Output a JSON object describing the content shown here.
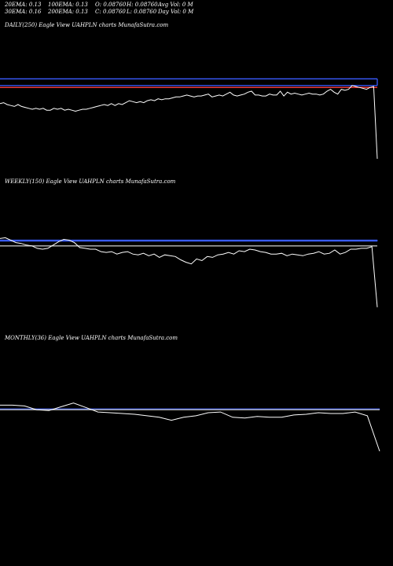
{
  "stats": {
    "ema20": "20EMA: 0.13",
    "ema30": "30EMA: 0.16",
    "ema100": "100EMA: 0.13",
    "ema200": "200EMA: 0.13",
    "open": "O: 0.08760",
    "close": "C: 0.08760",
    "high": "H: 0.08760",
    "low": "L: 0.08760",
    "avg_vol": "Avg Vol: 0  M",
    "day_vol": "Day Vol: 0  M"
  },
  "panels": {
    "daily": "DAILY(250) Eagle  View  UAHPLN  charts MunafaSutra.com",
    "weekly": "WEEKLY(150) Eagle  View  UAHPLN  charts MunafaSutra.com",
    "monthly": "MONTHLY(36) Eagle  View  UAHPLN  charts MunafaSutra.com"
  },
  "colors": {
    "background": "#000000",
    "price": "#ffffff",
    "ema_blue": "#3a5cff",
    "ema_red": "#ff3b3b",
    "ema_gray": "#bbbbbb"
  },
  "chart_data": [
    {
      "type": "line",
      "title": "DAILY(250) Eagle  View  UAHPLN  charts MunafaSutra.com",
      "ylim": [
        0.07,
        0.17
      ],
      "series": [
        {
          "role": "price",
          "values": [
            0.133,
            0.134,
            0.132,
            0.131,
            0.13,
            0.132,
            0.13,
            0.129,
            0.128,
            0.127,
            0.128,
            0.127,
            0.128,
            0.126,
            0.126,
            0.128,
            0.127,
            0.128,
            0.126,
            0.127,
            0.126,
            0.125,
            0.126,
            0.127,
            0.127,
            0.128,
            0.129,
            0.13,
            0.131,
            0.132,
            0.131,
            0.133,
            0.131,
            0.133,
            0.132,
            0.134,
            0.136,
            0.135,
            0.134,
            0.135,
            0.134,
            0.136,
            0.137,
            0.136,
            0.138,
            0.137,
            0.138,
            0.138,
            0.139,
            0.14,
            0.14,
            0.141,
            0.142,
            0.141,
            0.14,
            0.141,
            0.141,
            0.142,
            0.143,
            0.14,
            0.141,
            0.142,
            0.141,
            0.143,
            0.145,
            0.142,
            0.141,
            0.142,
            0.143,
            0.145,
            0.146,
            0.142,
            0.142,
            0.141,
            0.141,
            0.143,
            0.142,
            0.142,
            0.146,
            0.141,
            0.145,
            0.143,
            0.144,
            0.143,
            0.142,
            0.143,
            0.144,
            0.143,
            0.143,
            0.142,
            0.143,
            0.146,
            0.148,
            0.145,
            0.143,
            0.148,
            0.147,
            0.148,
            0.152,
            0.151,
            0.15,
            0.149,
            0.148,
            0.15,
            0.151,
            0.075
          ]
        },
        {
          "role": "ema",
          "color": "#3a5cff",
          "values": [
            0.152,
            0.152
          ]
        },
        {
          "role": "ema",
          "color": "#3a5cff",
          "values": [
            0.159,
            0.159
          ]
        },
        {
          "role": "ema",
          "color": "#ff3b3b",
          "values": [
            0.15,
            0.15
          ]
        }
      ]
    },
    {
      "type": "line",
      "title": "WEEKLY(150) Eagle  View  UAHPLN  charts MunafaSutra.com",
      "ylim": [
        0.07,
        0.17
      ],
      "series": [
        {
          "role": "price",
          "values": [
            0.159,
            0.16,
            0.157,
            0.154,
            0.153,
            0.151,
            0.15,
            0.147,
            0.146,
            0.147,
            0.151,
            0.155,
            0.158,
            0.157,
            0.154,
            0.148,
            0.147,
            0.146,
            0.146,
            0.143,
            0.142,
            0.143,
            0.14,
            0.142,
            0.143,
            0.14,
            0.139,
            0.141,
            0.138,
            0.14,
            0.136,
            0.139,
            0.138,
            0.137,
            0.133,
            0.13,
            0.128,
            0.134,
            0.132,
            0.137,
            0.136,
            0.139,
            0.14,
            0.142,
            0.14,
            0.144,
            0.143,
            0.146,
            0.145,
            0.143,
            0.142,
            0.14,
            0.14,
            0.141,
            0.138,
            0.14,
            0.139,
            0.138,
            0.14,
            0.141,
            0.143,
            0.14,
            0.141,
            0.145,
            0.14,
            0.142,
            0.146,
            0.146,
            0.147,
            0.147,
            0.149,
            0.075
          ]
        },
        {
          "role": "ema",
          "color": "#3a5cff",
          "values": [
            0.157,
            0.157
          ]
        },
        {
          "role": "ema",
          "color": "#3a5cff",
          "values": [
            0.156,
            0.156
          ]
        },
        {
          "role": "ema",
          "color": "#bbbbbb",
          "values": [
            0.15,
            0.15
          ]
        }
      ]
    },
    {
      "type": "line",
      "title": "MONTHLY(36) Eagle  View  UAHPLN  charts MunafaSutra.com",
      "ylim": [
        0.07,
        0.17
      ],
      "series": [
        {
          "role": "price",
          "values": [
            0.156,
            0.156,
            0.155,
            0.15,
            0.149,
            0.154,
            0.159,
            0.153,
            0.147,
            0.146,
            0.145,
            0.144,
            0.142,
            0.14,
            0.136,
            0.14,
            0.142,
            0.146,
            0.147,
            0.14,
            0.139,
            0.141,
            0.14,
            0.14,
            0.143,
            0.144,
            0.146,
            0.145,
            0.145,
            0.147,
            0.142,
            0.095
          ]
        },
        {
          "role": "ema",
          "color": "#3a5cff",
          "values": [
            0.151,
            0.151
          ]
        },
        {
          "role": "ema",
          "color": "#3a5cff",
          "values": [
            0.1505,
            0.1505
          ]
        },
        {
          "role": "ema",
          "color": "#bbbbbb",
          "values": [
            0.15,
            0.15
          ]
        }
      ]
    }
  ]
}
